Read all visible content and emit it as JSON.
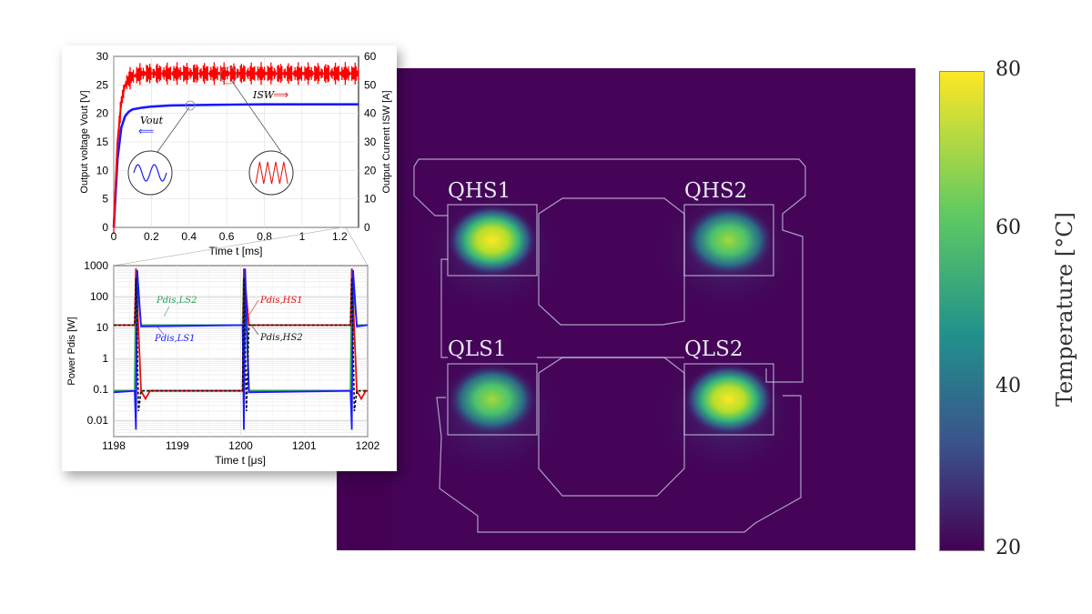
{
  "colorbar": {
    "ticks": [
      "80",
      "60",
      "40",
      "20"
    ],
    "label": "Temperature [°C]",
    "colors": [
      "#fde725",
      "#5ec962",
      "#21918c",
      "#3b528b",
      "#440154"
    ]
  },
  "thermal": {
    "chips": [
      "QHS1",
      "QHS2",
      "QLS1",
      "QLS2"
    ]
  },
  "chart_data": [
    {
      "type": "line",
      "xlabel": "Time t [ms]",
      "ylabel": "Output voltage Vout [V]",
      "y2label": "Output Current ISW [A]",
      "xlim": [
        0,
        1.3
      ],
      "ylim": [
        0,
        30
      ],
      "y2lim": [
        0,
        60
      ],
      "xticks": [
        "0",
        "0.2",
        "0.4",
        "0.6",
        "0.8",
        "1",
        "1.2"
      ],
      "yticks": [
        "0",
        "5",
        "10",
        "15",
        "20",
        "25",
        "30"
      ],
      "y2ticks": [
        "0",
        "10",
        "20",
        "30",
        "40",
        "50",
        "60"
      ],
      "series": [
        {
          "name": "Vout",
          "axis": "left",
          "color": "#1a1aff",
          "x": [
            0,
            0.02,
            0.04,
            0.06,
            0.08,
            0.1,
            0.15,
            0.2,
            0.3,
            0.5,
            0.8,
            1.0,
            1.3
          ],
          "values": [
            0,
            12,
            17.5,
            19.5,
            20.3,
            20.7,
            21.0,
            21.2,
            21.4,
            21.5,
            21.6,
            21.6,
            21.6
          ]
        },
        {
          "name": "ISW",
          "axis": "right",
          "color": "#ff0000",
          "x": [
            0,
            0.02,
            0.04,
            0.06,
            0.08,
            0.1,
            0.15,
            0.2,
            0.3,
            0.5,
            0.8,
            1.0,
            1.3
          ],
          "values": [
            0,
            30,
            44,
            50,
            52,
            53,
            54,
            54,
            54,
            54,
            54,
            54,
            54
          ]
        }
      ],
      "annotations": [
        "Vout",
        "ISW"
      ]
    },
    {
      "type": "line",
      "xlabel": "Time t [μs]",
      "ylabel": "Power Pdis [W]",
      "scale": "log",
      "xlim": [
        1198,
        1202
      ],
      "ylim": [
        0.003,
        1000
      ],
      "xticks": [
        "1198",
        "1199",
        "1200",
        "1201",
        "1202"
      ],
      "yticks": [
        "1000",
        "100",
        "10",
        "1",
        "0.1",
        "0.01"
      ],
      "series": [
        {
          "name": "Pdis,LS2",
          "color": "#2e9e5b"
        },
        {
          "name": "Pdis,HS1",
          "color": "#e01010"
        },
        {
          "name": "Pdis,LS1",
          "color": "#1a1aff"
        },
        {
          "name": "Pdis,HS2",
          "color": "#111111"
        }
      ],
      "levels": {
        "on_state": 12,
        "off_state": 0.09,
        "spike_peak": 800,
        "switching_times": [
          1198.35,
          1200.05,
          1201.75
        ]
      }
    }
  ]
}
